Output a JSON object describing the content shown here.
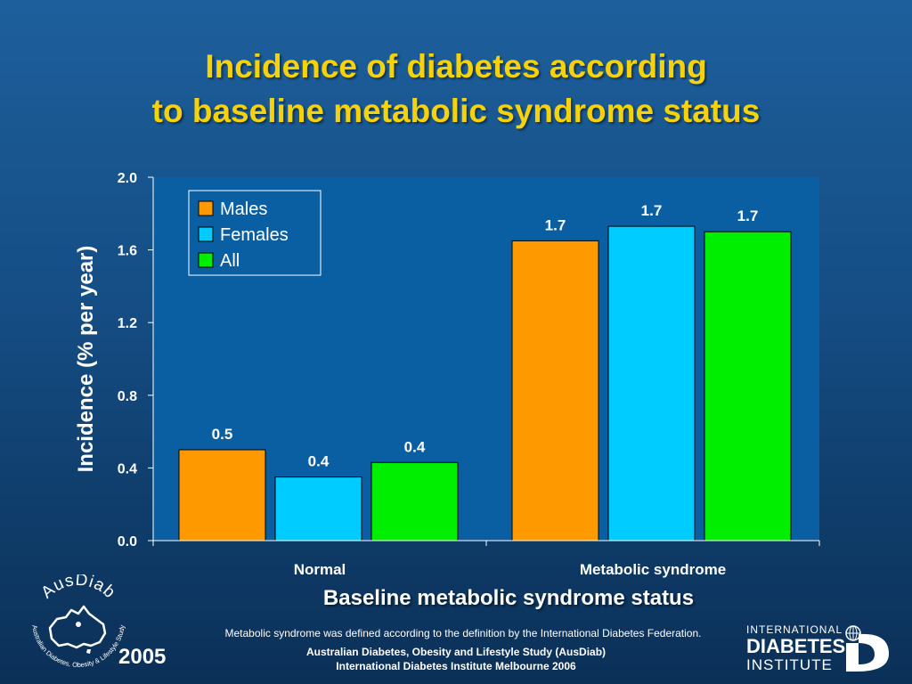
{
  "title": {
    "line1": "Incidence of diabetes according",
    "line2": "to baseline metabolic syndrome status"
  },
  "colors": {
    "title": "#f5d20a",
    "plot_background": "#0a5fa2",
    "males": "#ff9900",
    "females": "#00ccff",
    "all": "#00ee00"
  },
  "chart_data": {
    "type": "bar",
    "categories": [
      "Normal",
      "Metabolic syndrome"
    ],
    "series": [
      {
        "name": "Males",
        "values": [
          0.5,
          1.65
        ],
        "labels": [
          "0.5",
          "1.7"
        ]
      },
      {
        "name": "Females",
        "values": [
          0.35,
          1.73
        ],
        "labels": [
          "0.4",
          "1.7"
        ]
      },
      {
        "name": "All",
        "values": [
          0.43,
          1.7
        ],
        "labels": [
          "0.4",
          "1.7"
        ]
      }
    ],
    "xlabel": "Baseline metabolic syndrome status",
    "ylabel": "Incidence (% per year)",
    "ylim": [
      0,
      2.0
    ],
    "yticks": [
      "0.0",
      "0.4",
      "0.8",
      "1.2",
      "1.6",
      "2.0"
    ],
    "grid": false,
    "legend": "top-left"
  },
  "footnote": "Metabolic syndrome was defined according to the definition by the International Diabetes Federation.",
  "source": {
    "line1": "Australian Diabetes, Obesity and Lifestyle Study (AusDiab)",
    "line2": "International Diabetes Institute Melbourne 2006"
  },
  "year": "2005",
  "logos": {
    "ausdiab": {
      "name": "AusDiab",
      "tagline": "Australian Diabetes, Obesity & Lifestyle Study"
    },
    "idi": {
      "line1": "INTERNATIONAL",
      "line2": "DIABETES",
      "line3": "INSTITUTE"
    }
  }
}
